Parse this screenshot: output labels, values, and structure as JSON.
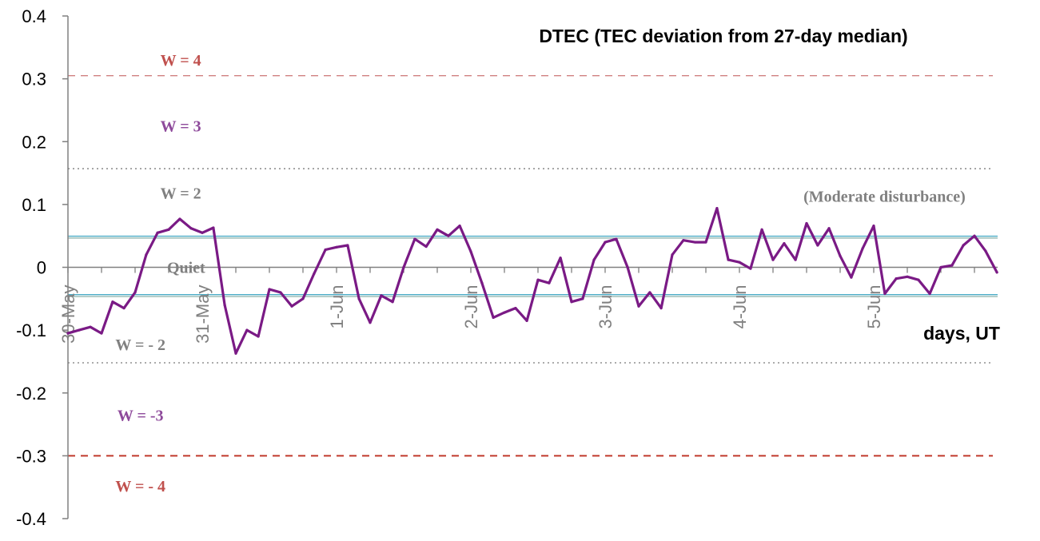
{
  "chart_data": {
    "type": "line",
    "title": "DTEC (TEC deviation from 27-day median)",
    "xlabel": "days, UT",
    "ylabel": "",
    "ylim": [
      -0.4,
      0.4
    ],
    "yticks": [
      "0.4",
      "0.3",
      "0.2",
      "0.1",
      "0",
      "-0.1",
      "-0.2",
      "-0.3",
      "-0.4"
    ],
    "ytick_values": [
      0.4,
      0.3,
      0.2,
      0.1,
      0,
      -0.1,
      -0.2,
      -0.3,
      -0.4
    ],
    "xlim": [
      0,
      7
    ],
    "xticks": [
      "30-May",
      "31-May",
      "1-Jun",
      "2-Jun",
      "3-Jun",
      "4-Jun",
      "5-Jun"
    ],
    "xtick_values": [
      0,
      1,
      2,
      3,
      4,
      5,
      6
    ],
    "grid": false,
    "colors": {
      "series": "#7a1a85",
      "w4": "#c0504d",
      "w3": "#8e4a9b",
      "w2": "#808080",
      "quiet": "#4bacc6",
      "axis": "#808080"
    },
    "thresholds": [
      {
        "value": 0.305,
        "style": "dashed",
        "color": "#d08080"
      },
      {
        "value": 0.157,
        "style": "dotted",
        "color": "#909090"
      },
      {
        "value": 0.048,
        "style": "double",
        "color": "#4bacc6"
      },
      {
        "value": -0.045,
        "style": "double",
        "color": "#4bacc6"
      },
      {
        "value": -0.152,
        "style": "dotted",
        "color": "#909090"
      },
      {
        "value": -0.3,
        "style": "dashed",
        "color": "#c0392b"
      }
    ],
    "annotations": [
      {
        "text": "W = 4",
        "x": 0.84,
        "y": 0.33,
        "color": "#c0504d"
      },
      {
        "text": "W = 3",
        "x": 0.84,
        "y": 0.225,
        "color": "#8e4a9b"
      },
      {
        "text": "W = 2",
        "x": 0.84,
        "y": 0.118,
        "color": "#808080"
      },
      {
        "text": "(Moderate disturbance)",
        "x": 6.08,
        "y": 0.113,
        "color": "#808080"
      },
      {
        "text": "Quiet",
        "x": 0.88,
        "y": 0.0,
        "color": "#808080"
      },
      {
        "text": "W = - 2",
        "x": 0.54,
        "y": -0.123,
        "color": "#808080"
      },
      {
        "text": "W = -3",
        "x": 0.54,
        "y": -0.235,
        "color": "#8e4a9b"
      },
      {
        "text": "W = - 4",
        "x": 0.54,
        "y": -0.348,
        "color": "#c0504d"
      }
    ],
    "series": [
      {
        "x": [
          0,
          0.083,
          0.167,
          0.25,
          0.333,
          0.417,
          0.5,
          0.583,
          0.667,
          0.75,
          0.833,
          0.917,
          1.0,
          1.083,
          1.167,
          1.25,
          1.333,
          1.417,
          1.5,
          1.583,
          1.667,
          1.75,
          1.833,
          1.917,
          2.0,
          2.083,
          2.167,
          2.25,
          2.333,
          2.417,
          2.5,
          2.583,
          2.667,
          2.75,
          2.833,
          2.917,
          3.0,
          3.083,
          3.167,
          3.25,
          3.333,
          3.417,
          3.5,
          3.583,
          3.667,
          3.75,
          3.833,
          3.917,
          4.0,
          4.083,
          4.167,
          4.25,
          4.333,
          4.417,
          4.5,
          4.583,
          4.667,
          4.75,
          4.833,
          4.917,
          5.0,
          5.083,
          5.167,
          5.25,
          5.333,
          5.417,
          5.5,
          5.583,
          5.667,
          5.75,
          5.833,
          5.917,
          6.0,
          6.083,
          6.167,
          6.25,
          6.333,
          6.417,
          6.5,
          6.583,
          6.667,
          6.75,
          6.833,
          6.917
        ],
        "values": [
          -0.105,
          -0.1,
          -0.095,
          -0.105,
          -0.055,
          -0.065,
          -0.04,
          0.02,
          0.055,
          0.06,
          0.077,
          0.062,
          0.055,
          0.063,
          -0.06,
          -0.137,
          -0.1,
          -0.11,
          -0.035,
          -0.04,
          -0.062,
          -0.05,
          -0.01,
          0.028,
          0.032,
          0.035,
          -0.05,
          -0.088,
          -0.045,
          -0.055,
          0.0,
          0.045,
          0.033,
          0.06,
          0.05,
          0.066,
          0.025,
          -0.025,
          -0.08,
          -0.072,
          -0.065,
          -0.085,
          -0.02,
          -0.025,
          0.015,
          -0.055,
          -0.05,
          0.012,
          0.04,
          0.045,
          0.0,
          -0.062,
          -0.04,
          -0.065,
          0.02,
          0.043,
          0.04,
          0.04,
          0.094,
          0.012,
          0.008,
          -0.002,
          0.06,
          0.012,
          0.038,
          0.012,
          0.07,
          0.035,
          0.062,
          0.018,
          -0.016,
          0.03,
          0.066,
          -0.042,
          -0.018,
          -0.015,
          -0.02,
          -0.042,
          0.0,
          0.003,
          0.035,
          0.05,
          0.026,
          -0.008
        ]
      }
    ]
  }
}
